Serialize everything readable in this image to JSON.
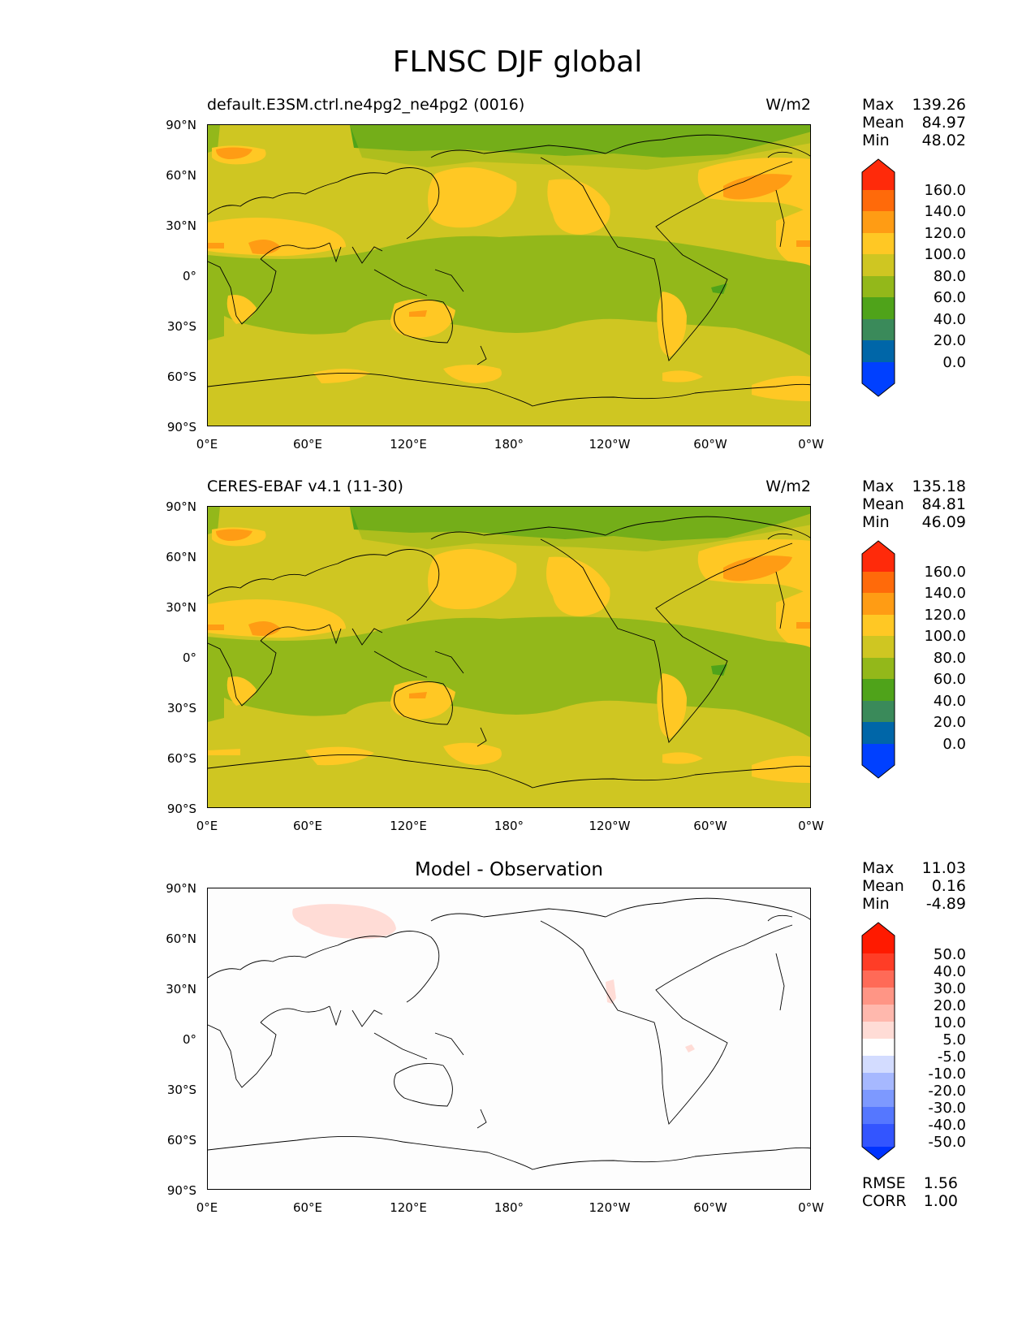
{
  "title": "FLNSC DJF global",
  "lat_labels": [
    "90°N",
    "60°N",
    "30°N",
    "0°",
    "30°S",
    "60°S",
    "90°S"
  ],
  "lon_labels": [
    "0°E",
    "60°E",
    "120°E",
    "180°",
    "120°W",
    "60°W",
    "0°W"
  ],
  "colors": {
    "field": [
      "#0040ff",
      "#0066a8",
      "#3a8a5a",
      "#4fa31a",
      "#93b81a",
      "#cfc622",
      "#ffc824",
      "#ff9c14",
      "#ff6a0a",
      "#ff2a0a"
    ],
    "diff": [
      "#0033ff",
      "#3355ff",
      "#5577ff",
      "#7d99ff",
      "#a6b8ff",
      "#d3dcff",
      "#ffffff",
      "#ffdcd6",
      "#ffb8ad",
      "#ff9585",
      "#ff6a57",
      "#ff3d26",
      "#ff1a00"
    ]
  },
  "panels": [
    {
      "label_left": "default.E3SM.ctrl.ne4pg2_ne4pg2 (0016)",
      "label_right": "W/m2",
      "stats": [
        {
          "name": "Max",
          "value": "139.26"
        },
        {
          "name": "Mean",
          "value": "84.97"
        },
        {
          "name": "Min",
          "value": "48.02"
        }
      ],
      "colorbar_labels": [
        "160.0",
        "140.0",
        "120.0",
        "100.0",
        "80.0",
        "60.0",
        "40.0",
        "20.0",
        "0.0"
      ]
    },
    {
      "label_left": "CERES-EBAF v4.1 (11-30)",
      "label_right": "W/m2",
      "stats": [
        {
          "name": "Max",
          "value": "135.18"
        },
        {
          "name": "Mean",
          "value": "84.81"
        },
        {
          "name": "Min",
          "value": "46.09"
        }
      ],
      "colorbar_labels": [
        "160.0",
        "140.0",
        "120.0",
        "100.0",
        "80.0",
        "60.0",
        "40.0",
        "20.0",
        "0.0"
      ]
    },
    {
      "label_center": "Model - Observation",
      "stats": [
        {
          "name": "Max",
          "value": "11.03"
        },
        {
          "name": "Mean",
          "value": "0.16"
        },
        {
          "name": "Min",
          "value": "-4.89"
        }
      ],
      "colorbar_labels": [
        "50.0",
        "40.0",
        "30.0",
        "20.0",
        "10.0",
        "5.0",
        "-5.0",
        "-10.0",
        "-20.0",
        "-30.0",
        "-40.0",
        "-50.0"
      ],
      "metrics": [
        {
          "name": "RMSE",
          "value": "1.56"
        },
        {
          "name": "CORR",
          "value": "1.00"
        }
      ]
    }
  ]
}
